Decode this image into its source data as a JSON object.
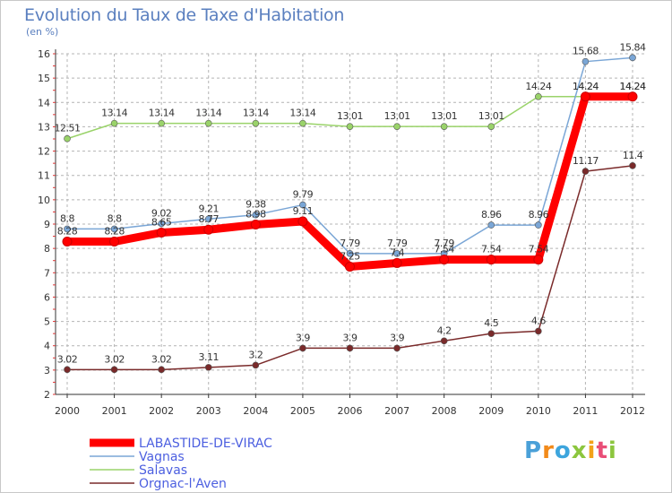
{
  "title": "Evolution du Taux de Taxe d'Habitation",
  "subtitle": "(en %)",
  "logo": "Proxiti",
  "colors": {
    "background": "#ffffff",
    "grid": "#b4b4b4",
    "axis": "#333333",
    "title": "#5a7fbf"
  },
  "chart_data": {
    "type": "line",
    "title": "Evolution du Taux de Taxe d'Habitation",
    "ylabel": "(en %)",
    "xlabel": "",
    "x": [
      "2000",
      "2001",
      "2002",
      "2003",
      "2004",
      "2005",
      "2006",
      "2007",
      "2008",
      "2009",
      "2010",
      "2011",
      "2012"
    ],
    "ylim": [
      2,
      16
    ],
    "yticks": [
      2,
      3,
      4,
      5,
      6,
      7,
      8,
      9,
      10,
      11,
      12,
      13,
      14,
      15,
      16
    ],
    "grid": "dashed horizontal and vertical",
    "legend_position": "bottom-left",
    "series": [
      {
        "name": "LABASTIDE-DE-VIRAC",
        "color": "#ff0000",
        "values": [
          8.28,
          8.28,
          8.65,
          8.77,
          8.98,
          9.11,
          7.25,
          7.4,
          7.54,
          7.54,
          7.54,
          14.24,
          14.24
        ],
        "labels": [
          "8.28",
          "8.28",
          "8.65",
          "8.77",
          "8.98",
          "9.11",
          "7.25",
          "7.4",
          "7.54",
          "7.54",
          "7.54",
          "14.24",
          "14.24"
        ]
      },
      {
        "name": "Vagnas",
        "color": "#7aa6d6",
        "values": [
          8.8,
          8.8,
          9.02,
          9.21,
          9.38,
          9.79,
          7.79,
          7.79,
          7.79,
          8.96,
          8.96,
          15.68,
          15.84
        ],
        "labels": [
          "8.8",
          "8.8",
          "9.02",
          "9.21",
          "9.38",
          "9.79",
          "7.79",
          "7.79",
          "7.79",
          "8.96",
          "8.96",
          "15.68",
          "15.84"
        ]
      },
      {
        "name": "Salavas",
        "color": "#9ad36a",
        "values": [
          12.51,
          13.14,
          13.14,
          13.14,
          13.14,
          13.14,
          13.01,
          13.01,
          13.01,
          13.01,
          14.24,
          14.24,
          14.24
        ],
        "labels": [
          "12.51",
          "13.14",
          "13.14",
          "13.14",
          "13.14",
          "13.14",
          "13.01",
          "13.01",
          "13.01",
          "13.01",
          "14.24",
          "14.24",
          "14.24"
        ]
      },
      {
        "name": "Orgnac-l'Aven",
        "color": "#7a2a2a",
        "values": [
          3.02,
          3.02,
          3.02,
          3.11,
          3.2,
          3.9,
          3.9,
          3.9,
          4.2,
          4.5,
          4.6,
          11.17,
          11.4
        ],
        "labels": [
          "3.02",
          "3.02",
          "3.02",
          "3.11",
          "3.2",
          "3.9",
          "3.9",
          "3.9",
          "4.2",
          "4.5",
          "4.6",
          "11.17",
          "11.4"
        ]
      }
    ]
  }
}
